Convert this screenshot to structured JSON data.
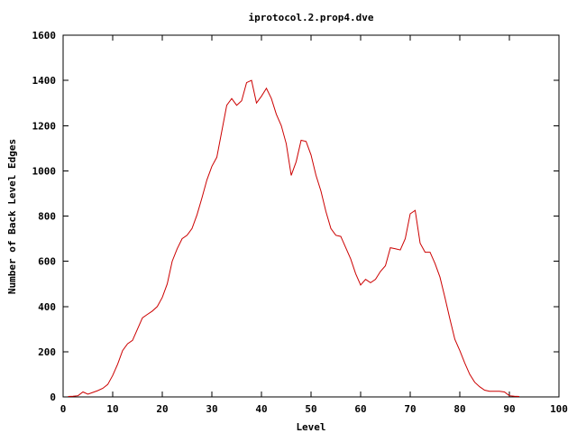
{
  "chart_data": {
    "type": "line",
    "title": "iprotocol.2.prop4.dve",
    "xlabel": "Level",
    "ylabel": "Number of Back Level Edges",
    "xlim": [
      0,
      100
    ],
    "ylim": [
      0,
      1600
    ],
    "xticks": [
      0,
      10,
      20,
      30,
      40,
      50,
      60,
      70,
      80,
      90,
      100
    ],
    "yticks": [
      0,
      200,
      400,
      600,
      800,
      1000,
      1200,
      1400,
      1600
    ],
    "grid": false,
    "legend": "none",
    "series": [
      {
        "color": "#cc0000",
        "x": [
          1,
          2,
          3,
          4,
          5,
          6,
          7,
          8,
          9,
          10,
          11,
          12,
          13,
          14,
          15,
          16,
          17,
          18,
          19,
          20,
          21,
          22,
          23,
          24,
          25,
          26,
          27,
          28,
          29,
          30,
          31,
          32,
          33,
          34,
          35,
          36,
          37,
          38,
          39,
          40,
          41,
          42,
          43,
          44,
          45,
          46,
          47,
          48,
          49,
          50,
          51,
          52,
          53,
          54,
          55,
          56,
          57,
          58,
          59,
          60,
          61,
          62,
          63,
          64,
          65,
          66,
          67,
          68,
          69,
          70,
          71,
          72,
          73,
          74,
          75,
          76,
          77,
          78,
          79,
          80,
          81,
          82,
          83,
          84,
          85,
          86,
          87,
          88,
          89,
          90,
          91,
          92
        ],
        "y": [
          2,
          3,
          5,
          22,
          12,
          20,
          28,
          38,
          55,
          95,
          145,
          205,
          235,
          250,
          300,
          350,
          365,
          380,
          400,
          440,
          500,
          600,
          655,
          700,
          715,
          745,
          805,
          880,
          960,
          1020,
          1060,
          1175,
          1290,
          1320,
          1290,
          1310,
          1390,
          1400,
          1300,
          1330,
          1365,
          1320,
          1250,
          1200,
          1120,
          980,
          1040,
          1135,
          1130,
          1070,
          980,
          910,
          820,
          745,
          715,
          710,
          660,
          610,
          545,
          495,
          520,
          505,
          520,
          555,
          580,
          660,
          655,
          650,
          700,
          810,
          825,
          680,
          640,
          640,
          590,
          530,
          440,
          345,
          255,
          205,
          150,
          100,
          65,
          45,
          30,
          25,
          25,
          25,
          22,
          5,
          3,
          2
        ]
      }
    ]
  }
}
